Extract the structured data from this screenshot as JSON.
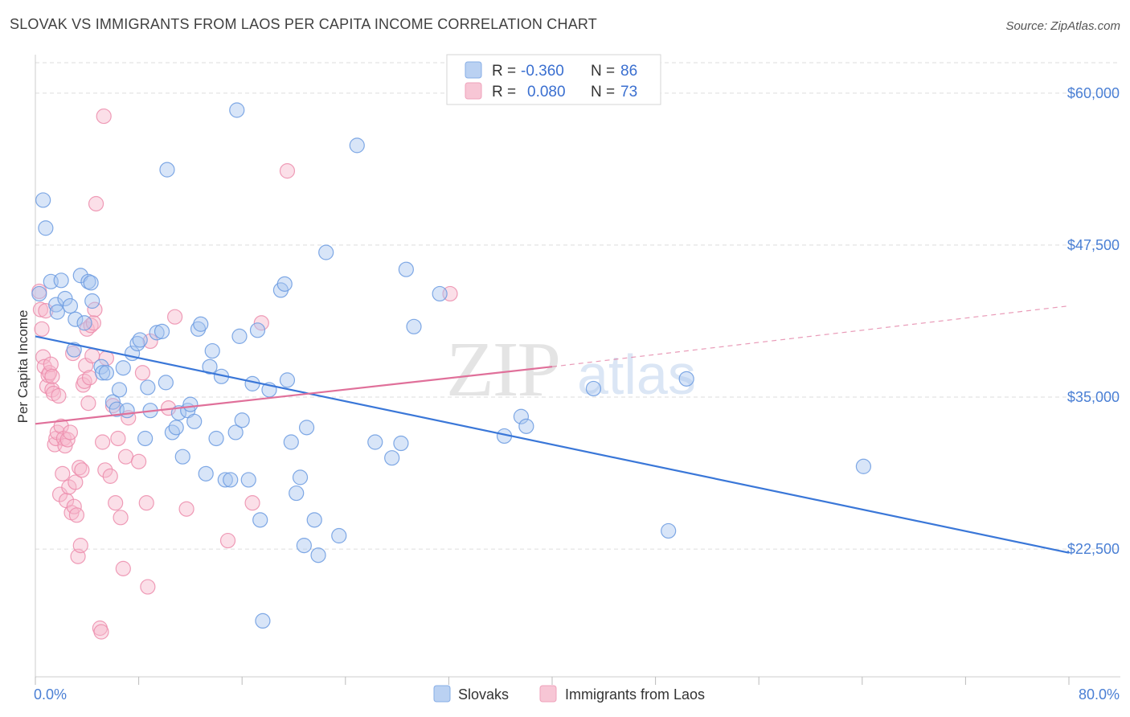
{
  "title": "SLOVAK VS IMMIGRANTS FROM LAOS PER CAPITA INCOME CORRELATION CHART",
  "source": "Source: ZipAtlas.com",
  "watermark": {
    "zip": "ZIP",
    "atlas": "atlas"
  },
  "colors": {
    "blue_fill": "#a9c6f0",
    "blue_stroke": "#6a9ae0",
    "blue_line": "#3a77d8",
    "pink_fill": "#f6b8cb",
    "pink_stroke": "#ec8cab",
    "pink_line": "#e0709a",
    "grid": "#dddddd"
  },
  "legend": {
    "row1": {
      "r_label": "R =",
      "r_value": "-0.360",
      "n_label": "N =",
      "n_value": "86"
    },
    "row2": {
      "r_label": "R =",
      "r_value": "0.080",
      "n_label": "N =",
      "n_value": "73"
    }
  },
  "chart_data": {
    "type": "scatter",
    "title": "SLOVAK VS IMMIGRANTS FROM LAOS PER CAPITA INCOME CORRELATION CHART",
    "xlabel": "",
    "ylabel": "Per Capita Income",
    "xlim": [
      0,
      80
    ],
    "ylim": [
      12000,
      62500
    ],
    "x_tick_labels": [
      "0.0%",
      "80.0%"
    ],
    "y_ticks": [
      22500,
      35000,
      47500,
      60000
    ],
    "y_tick_labels": [
      "$22,500",
      "$35,000",
      "$47,500",
      "$60,000"
    ],
    "grid": true,
    "legend_position": "top-center",
    "series": [
      {
        "name": "Slovaks",
        "trend": {
          "x": [
            0,
            80
          ],
          "y": [
            40000,
            22200
          ],
          "style": "solid"
        },
        "points": [
          [
            0.3,
            43.5
          ],
          [
            0.6,
            51.2
          ],
          [
            0.8,
            48.9
          ],
          [
            1.2,
            44.5
          ],
          [
            1.6,
            42.6
          ],
          [
            1.7,
            42.0
          ],
          [
            2.0,
            44.6
          ],
          [
            2.3,
            43.1
          ],
          [
            2.7,
            42.5
          ],
          [
            3.0,
            38.9
          ],
          [
            3.1,
            41.4
          ],
          [
            3.5,
            45.0
          ],
          [
            3.8,
            41.1
          ],
          [
            4.1,
            44.5
          ],
          [
            4.3,
            44.4
          ],
          [
            4.4,
            42.9
          ],
          [
            5.1,
            37.5
          ],
          [
            5.2,
            37.0
          ],
          [
            5.5,
            37.0
          ],
          [
            6.0,
            34.6
          ],
          [
            6.3,
            34.0
          ],
          [
            6.5,
            35.6
          ],
          [
            6.8,
            37.4
          ],
          [
            7.1,
            33.9
          ],
          [
            7.5,
            38.6
          ],
          [
            7.9,
            39.4
          ],
          [
            8.1,
            39.7
          ],
          [
            8.5,
            31.6
          ],
          [
            8.7,
            35.8
          ],
          [
            8.9,
            33.9
          ],
          [
            9.4,
            40.3
          ],
          [
            9.8,
            40.4
          ],
          [
            10.1,
            36.2
          ],
          [
            10.2,
            53.7
          ],
          [
            10.6,
            32.1
          ],
          [
            10.9,
            32.5
          ],
          [
            11.1,
            33.7
          ],
          [
            11.4,
            30.1
          ],
          [
            11.8,
            33.9
          ],
          [
            12.0,
            34.4
          ],
          [
            12.3,
            33.0
          ],
          [
            12.6,
            40.6
          ],
          [
            12.8,
            41.0
          ],
          [
            13.2,
            28.7
          ],
          [
            13.5,
            37.5
          ],
          [
            13.7,
            38.8
          ],
          [
            14.0,
            31.6
          ],
          [
            14.4,
            36.7
          ],
          [
            14.7,
            28.2
          ],
          [
            15.1,
            28.2
          ],
          [
            15.5,
            32.1
          ],
          [
            15.6,
            58.6
          ],
          [
            15.8,
            40.0
          ],
          [
            16.0,
            33.1
          ],
          [
            16.5,
            28.2
          ],
          [
            16.8,
            36.1
          ],
          [
            17.2,
            40.5
          ],
          [
            17.4,
            24.9
          ],
          [
            17.6,
            16.6
          ],
          [
            18.1,
            35.6
          ],
          [
            19.0,
            43.8
          ],
          [
            19.3,
            44.3
          ],
          [
            19.5,
            36.4
          ],
          [
            19.8,
            31.3
          ],
          [
            20.2,
            27.1
          ],
          [
            20.5,
            28.4
          ],
          [
            20.8,
            22.8
          ],
          [
            21.0,
            32.5
          ],
          [
            21.6,
            24.9
          ],
          [
            21.9,
            22.0
          ],
          [
            22.5,
            46.9
          ],
          [
            23.5,
            23.6
          ],
          [
            24.9,
            55.7
          ],
          [
            26.3,
            31.3
          ],
          [
            27.6,
            30.0
          ],
          [
            28.3,
            31.2
          ],
          [
            28.7,
            45.5
          ],
          [
            29.3,
            40.8
          ],
          [
            31.3,
            43.5
          ],
          [
            36.3,
            31.8
          ],
          [
            37.6,
            33.4
          ],
          [
            38.0,
            32.6
          ],
          [
            43.2,
            35.7
          ],
          [
            49.0,
            24.0
          ],
          [
            50.4,
            36.5
          ],
          [
            64.1,
            29.3
          ]
        ]
      },
      {
        "name": "Immigrants from Laos",
        "trend": {
          "x": [
            0,
            40
          ],
          "y": [
            32800,
            37500
          ],
          "style": "solid",
          "dashed_extension_to": [
            80,
            42500
          ]
        },
        "points": [
          [
            0.3,
            43.7
          ],
          [
            0.4,
            42.2
          ],
          [
            0.5,
            40.6
          ],
          [
            0.6,
            38.3
          ],
          [
            0.7,
            37.5
          ],
          [
            0.9,
            35.9
          ],
          [
            1.0,
            36.8
          ],
          [
            1.1,
            37.0
          ],
          [
            1.2,
            37.7
          ],
          [
            1.3,
            35.6
          ],
          [
            1.4,
            35.3
          ],
          [
            1.5,
            31.1
          ],
          [
            1.6,
            31.6
          ],
          [
            1.7,
            32.1
          ],
          [
            1.8,
            35.1
          ],
          [
            1.9,
            27.0
          ],
          [
            2.0,
            32.6
          ],
          [
            2.1,
            28.7
          ],
          [
            2.2,
            31.6
          ],
          [
            2.3,
            31.0
          ],
          [
            2.4,
            26.5
          ],
          [
            2.5,
            31.5
          ],
          [
            2.6,
            27.6
          ],
          [
            2.7,
            32.1
          ],
          [
            2.8,
            25.5
          ],
          [
            2.9,
            38.6
          ],
          [
            3.0,
            26.0
          ],
          [
            3.1,
            28.0
          ],
          [
            3.2,
            25.3
          ],
          [
            3.3,
            21.9
          ],
          [
            3.4,
            29.2
          ],
          [
            3.5,
            22.8
          ],
          [
            3.6,
            29.0
          ],
          [
            3.7,
            36.0
          ],
          [
            3.8,
            36.3
          ],
          [
            3.9,
            37.6
          ],
          [
            4.0,
            40.6
          ],
          [
            4.1,
            34.5
          ],
          [
            4.2,
            36.6
          ],
          [
            4.3,
            40.9
          ],
          [
            4.4,
            38.4
          ],
          [
            4.5,
            41.1
          ],
          [
            4.6,
            42.2
          ],
          [
            4.7,
            50.9
          ],
          [
            5.0,
            16.0
          ],
          [
            5.1,
            15.7
          ],
          [
            5.2,
            31.3
          ],
          [
            5.3,
            58.1
          ],
          [
            5.4,
            29.0
          ],
          [
            5.5,
            38.2
          ],
          [
            5.8,
            28.5
          ],
          [
            6.0,
            34.3
          ],
          [
            6.2,
            26.3
          ],
          [
            6.4,
            31.6
          ],
          [
            6.6,
            25.1
          ],
          [
            6.8,
            20.9
          ],
          [
            7.0,
            30.1
          ],
          [
            7.2,
            33.3
          ],
          [
            8.0,
            29.7
          ],
          [
            8.3,
            37.0
          ],
          [
            8.6,
            26.3
          ],
          [
            8.7,
            19.4
          ],
          [
            8.9,
            39.6
          ],
          [
            10.3,
            34.1
          ],
          [
            10.8,
            41.6
          ],
          [
            11.7,
            25.8
          ],
          [
            14.9,
            23.2
          ],
          [
            16.8,
            26.3
          ],
          [
            17.5,
            41.1
          ],
          [
            19.5,
            53.6
          ],
          [
            32.1,
            43.5
          ],
          [
            0.8,
            42.1
          ],
          [
            1.3,
            36.7
          ]
        ]
      }
    ]
  },
  "bottom_legend": [
    "Slovaks",
    "Immigrants from Laos"
  ]
}
